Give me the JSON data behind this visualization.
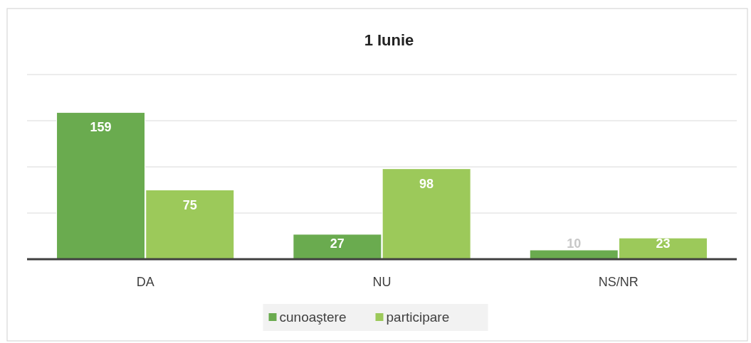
{
  "chart_data": {
    "type": "bar",
    "title": "1 Iunie",
    "categories": [
      "DA",
      "NU",
      "NS/NR"
    ],
    "series": [
      {
        "name": "cunoaştere",
        "color": "#6aab4f",
        "values": [
          159,
          27,
          10
        ]
      },
      {
        "name": "participare",
        "color": "#9cc95a",
        "values": [
          75,
          98,
          23
        ]
      }
    ],
    "ylim": [
      0,
      200
    ],
    "yticks": [
      {
        "value": 0,
        "label": null
      },
      {
        "value": 50,
        "label": null
      },
      {
        "value": 100,
        "label": null
      },
      {
        "value": 150,
        "label": null
      },
      {
        "value": 200,
        "label": null
      }
    ],
    "tick_labels": "x",
    "grid": "y",
    "legend": "bottom",
    "data_labels": true
  }
}
